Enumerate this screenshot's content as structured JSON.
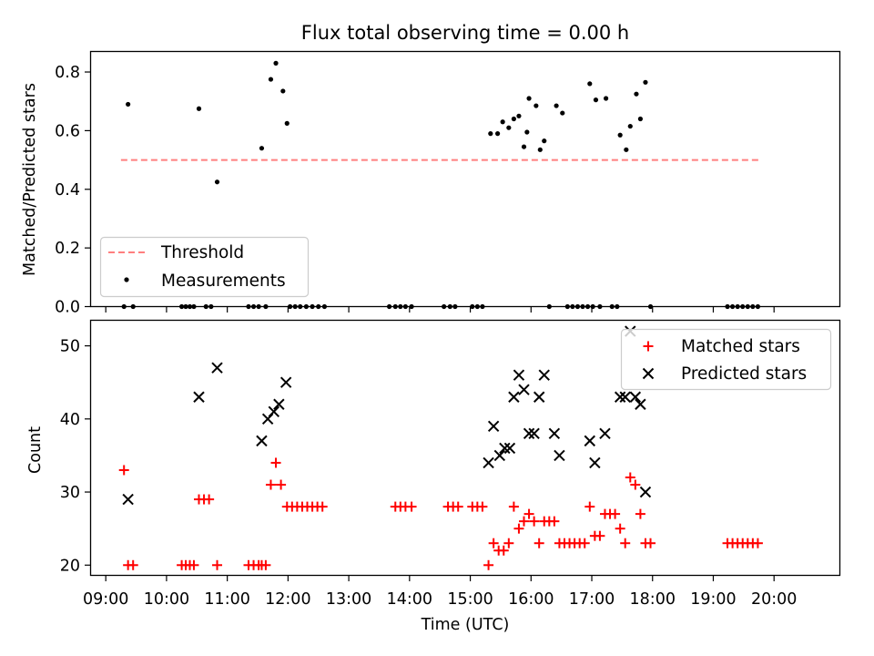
{
  "chart_data": [
    {
      "type": "scatter",
      "title": "Flux total observing time = 0.00 h",
      "xlabel": "",
      "ylabel": "Matched/Predicted stars",
      "x_unit": "hours UTC",
      "xlim": [
        "08:45",
        "21:05"
      ],
      "ylim": [
        0,
        0.87
      ],
      "yticks": [
        "0.0",
        "0.2",
        "0.4",
        "0.6",
        "0.8"
      ],
      "legend_position": "lower-left",
      "threshold": {
        "name": "Threshold",
        "value": 0.5,
        "x_range": [
          "09:15",
          "19:45"
        ],
        "style": "dashed",
        "color": "#ff7f7f"
      },
      "series": [
        {
          "name": "Measurements",
          "marker": "dot",
          "color": "#000000",
          "points": [
            [
              "09:22",
              0.69
            ],
            [
              "10:32",
              0.675
            ],
            [
              "10:50",
              0.425
            ],
            [
              "11:34",
              0.54
            ],
            [
              "11:43",
              0.775
            ],
            [
              "11:48",
              0.83
            ],
            [
              "11:55",
              0.735
            ],
            [
              "11:59",
              0.625
            ],
            [
              "15:20",
              0.59
            ],
            [
              "15:27",
              0.59
            ],
            [
              "15:32",
              0.63
            ],
            [
              "15:38",
              0.61
            ],
            [
              "15:43",
              0.64
            ],
            [
              "15:48",
              0.65
            ],
            [
              "15:53",
              0.545
            ],
            [
              "15:56",
              0.595
            ],
            [
              "15:58",
              0.71
            ],
            [
              "16:05",
              0.685
            ],
            [
              "16:09",
              0.535
            ],
            [
              "16:13",
              0.565
            ],
            [
              "16:25",
              0.685
            ],
            [
              "16:31",
              0.66
            ],
            [
              "16:58",
              0.76
            ],
            [
              "17:04",
              0.705
            ],
            [
              "17:14",
              0.71
            ],
            [
              "17:28",
              0.585
            ],
            [
              "17:34",
              0.535
            ],
            [
              "17:38",
              0.615
            ],
            [
              "17:44",
              0.725
            ],
            [
              "17:48",
              0.64
            ],
            [
              "17:53",
              0.765
            ],
            [
              "09:18",
              0
            ],
            [
              "09:27",
              0
            ],
            [
              "10:15",
              0
            ],
            [
              "10:19",
              0
            ],
            [
              "10:23",
              0
            ],
            [
              "10:27",
              0
            ],
            [
              "10:39",
              0
            ],
            [
              "10:44",
              0
            ],
            [
              "11:21",
              0
            ],
            [
              "11:26",
              0
            ],
            [
              "11:31",
              0
            ],
            [
              "11:38",
              0
            ],
            [
              "12:02",
              0
            ],
            [
              "12:07",
              0
            ],
            [
              "12:12",
              0
            ],
            [
              "12:18",
              0
            ],
            [
              "12:24",
              0
            ],
            [
              "12:30",
              0
            ],
            [
              "12:36",
              0
            ],
            [
              "13:40",
              0
            ],
            [
              "13:46",
              0
            ],
            [
              "13:51",
              0
            ],
            [
              "13:56",
              0
            ],
            [
              "14:02",
              0
            ],
            [
              "14:34",
              0
            ],
            [
              "14:40",
              0
            ],
            [
              "14:45",
              0
            ],
            [
              "15:02",
              0
            ],
            [
              "15:07",
              0
            ],
            [
              "15:12",
              0
            ],
            [
              "16:18",
              0
            ],
            [
              "16:36",
              0
            ],
            [
              "16:41",
              0
            ],
            [
              "16:46",
              0
            ],
            [
              "16:51",
              0
            ],
            [
              "16:56",
              0
            ],
            [
              "17:01",
              0
            ],
            [
              "17:08",
              0
            ],
            [
              "17:20",
              0
            ],
            [
              "17:25",
              0
            ],
            [
              "17:58",
              0
            ],
            [
              "19:14",
              0
            ],
            [
              "19:19",
              0
            ],
            [
              "19:24",
              0
            ],
            [
              "19:29",
              0
            ],
            [
              "19:34",
              0
            ],
            [
              "19:39",
              0
            ],
            [
              "19:44",
              0
            ]
          ]
        }
      ]
    },
    {
      "type": "scatter",
      "title": "",
      "xlabel": "Time (UTC)",
      "ylabel": "Count",
      "x_unit": "hours UTC",
      "xlim": [
        "08:45",
        "21:05"
      ],
      "ylim": [
        18.6,
        53.5
      ],
      "yticks": [
        "20",
        "30",
        "40",
        "50"
      ],
      "xticks": [
        "09:00",
        "10:00",
        "11:00",
        "12:00",
        "13:00",
        "14:00",
        "15:00",
        "16:00",
        "17:00",
        "18:00",
        "19:00",
        "20:00"
      ],
      "legend_position": "upper-right",
      "series": [
        {
          "name": "Matched stars",
          "marker": "plus",
          "color": "#ff0000",
          "points": [
            [
              "09:18",
              33
            ],
            [
              "09:22",
              20
            ],
            [
              "09:27",
              20
            ],
            [
              "10:15",
              20
            ],
            [
              "10:19",
              20
            ],
            [
              "10:23",
              20
            ],
            [
              "10:27",
              20
            ],
            [
              "10:32",
              29
            ],
            [
              "10:37",
              29
            ],
            [
              "10:42",
              29
            ],
            [
              "10:50",
              20
            ],
            [
              "11:21",
              20
            ],
            [
              "11:26",
              20
            ],
            [
              "11:31",
              20
            ],
            [
              "11:34",
              20
            ],
            [
              "11:38",
              20
            ],
            [
              "11:43",
              31
            ],
            [
              "11:48",
              34
            ],
            [
              "11:53",
              31
            ],
            [
              "11:59",
              28
            ],
            [
              "12:04",
              28
            ],
            [
              "12:09",
              28
            ],
            [
              "12:14",
              28
            ],
            [
              "12:19",
              28
            ],
            [
              "12:24",
              28
            ],
            [
              "12:29",
              28
            ],
            [
              "12:34",
              28
            ],
            [
              "13:46",
              28
            ],
            [
              "13:51",
              28
            ],
            [
              "13:56",
              28
            ],
            [
              "14:02",
              28
            ],
            [
              "14:38",
              28
            ],
            [
              "14:43",
              28
            ],
            [
              "14:48",
              28
            ],
            [
              "15:02",
              28
            ],
            [
              "15:07",
              28
            ],
            [
              "15:12",
              28
            ],
            [
              "15:18",
              20
            ],
            [
              "15:23",
              23
            ],
            [
              "15:28",
              22
            ],
            [
              "15:33",
              22
            ],
            [
              "15:38",
              23
            ],
            [
              "15:43",
              28
            ],
            [
              "15:48",
              25
            ],
            [
              "15:53",
              26
            ],
            [
              "15:58",
              27
            ],
            [
              "16:03",
              26
            ],
            [
              "16:08",
              23
            ],
            [
              "16:13",
              26
            ],
            [
              "16:18",
              26
            ],
            [
              "16:23",
              26
            ],
            [
              "16:28",
              23
            ],
            [
              "16:33",
              23
            ],
            [
              "16:38",
              23
            ],
            [
              "16:43",
              23
            ],
            [
              "16:48",
              23
            ],
            [
              "16:53",
              23
            ],
            [
              "16:58",
              28
            ],
            [
              "17:03",
              24
            ],
            [
              "17:08",
              24
            ],
            [
              "17:13",
              27
            ],
            [
              "17:18",
              27
            ],
            [
              "17:23",
              27
            ],
            [
              "17:28",
              25
            ],
            [
              "17:33",
              23
            ],
            [
              "17:38",
              32
            ],
            [
              "17:43",
              31
            ],
            [
              "17:48",
              27
            ],
            [
              "17:53",
              23
            ],
            [
              "17:58",
              23
            ],
            [
              "19:14",
              23
            ],
            [
              "19:19",
              23
            ],
            [
              "19:24",
              23
            ],
            [
              "19:29",
              23
            ],
            [
              "19:34",
              23
            ],
            [
              "19:39",
              23
            ],
            [
              "19:44",
              23
            ]
          ]
        },
        {
          "name": "Predicted stars",
          "marker": "x",
          "color": "#000000",
          "points": [
            [
              "09:22",
              29
            ],
            [
              "10:32",
              43
            ],
            [
              "10:50",
              47
            ],
            [
              "11:34",
              37
            ],
            [
              "11:40",
              40
            ],
            [
              "11:46",
              41
            ],
            [
              "11:51",
              42
            ],
            [
              "11:58",
              45
            ],
            [
              "15:18",
              34
            ],
            [
              "15:23",
              39
            ],
            [
              "15:29",
              35
            ],
            [
              "15:34",
              36
            ],
            [
              "15:39",
              36
            ],
            [
              "15:43",
              43
            ],
            [
              "15:48",
              46
            ],
            [
              "15:53",
              44
            ],
            [
              "15:58",
              38
            ],
            [
              "16:03",
              38
            ],
            [
              "16:08",
              43
            ],
            [
              "16:13",
              46
            ],
            [
              "16:23",
              38
            ],
            [
              "16:28",
              35
            ],
            [
              "16:58",
              37
            ],
            [
              "17:03",
              34
            ],
            [
              "17:13",
              38
            ],
            [
              "17:28",
              43
            ],
            [
              "17:33",
              43
            ],
            [
              "17:38",
              52
            ],
            [
              "17:43",
              43
            ],
            [
              "17:48",
              42
            ],
            [
              "17:53",
              30
            ]
          ]
        }
      ]
    }
  ]
}
